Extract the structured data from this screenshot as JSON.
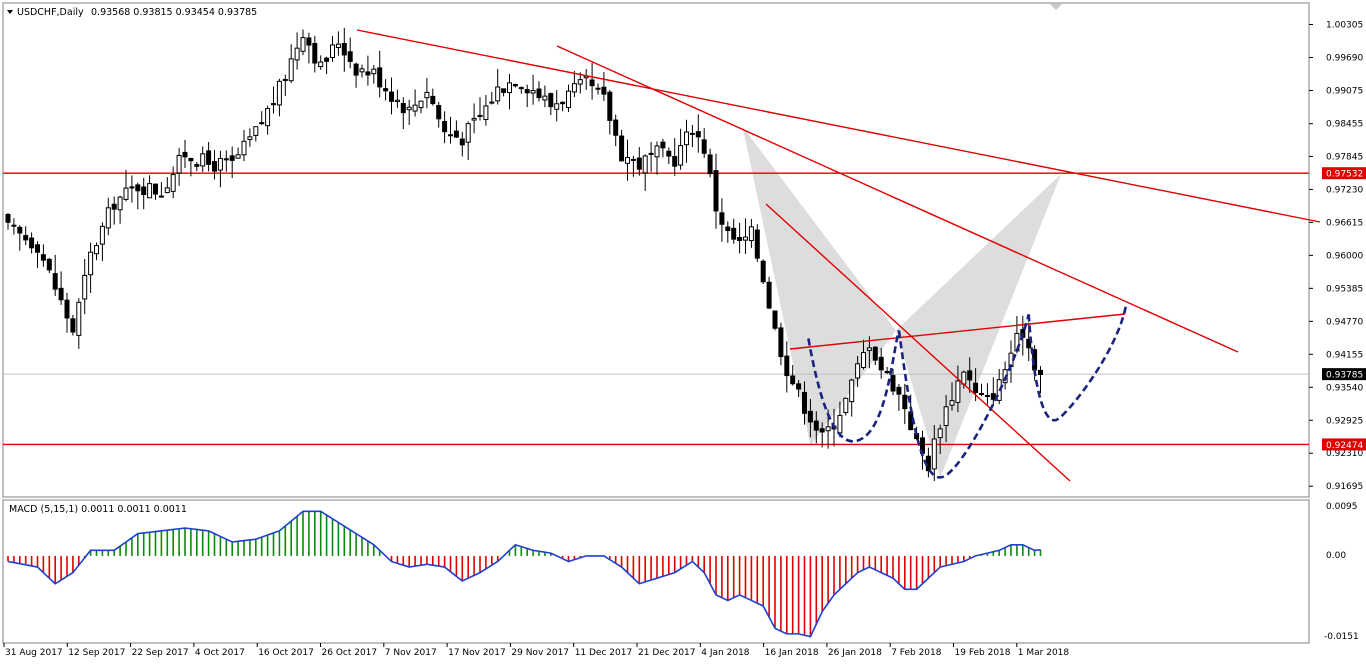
{
  "header": {
    "symbol": "USDCHF,Daily",
    "ohlc": "0.93568 0.93815 0.93454 0.93785"
  },
  "macd": {
    "label": "MACD (5,15,1) 0.0011 0.0011 0.0011",
    "scale_labels": [
      "0.0095",
      "0.00",
      "-0.0151"
    ]
  },
  "colors": {
    "bull_candle": "#ffffff",
    "bear_candle": "#000000",
    "trendline": "#e00000",
    "pattern_fill": "#d9d9d9",
    "dashed_curve": "#1a237e",
    "macd_pos": "#0a8a0a",
    "macd_neg": "#e00000",
    "macd_signal": "#1f3fd1",
    "price_tag_red": "#e00000",
    "price_tag_current": "#000000"
  },
  "chart_data": {
    "type": "candlestick",
    "symbol": "USDCHF",
    "timeframe": "Daily",
    "y_ticks": [
      "1.00305",
      "0.99690",
      "0.99075",
      "0.98455",
      "0.97845",
      "0.97230",
      "0.96615",
      "0.96000",
      "0.95385",
      "0.94770",
      "0.94155",
      "0.93540",
      "0.92925",
      "0.92310",
      "0.91695"
    ],
    "ylim": [
      0.9155,
      1.0065
    ],
    "x_ticks": [
      "31 Aug 2017",
      "12 Sep 2017",
      "22 Sep 2017",
      "4 Oct 2017",
      "16 Oct 2017",
      "26 Oct 2017",
      "7 Nov 2017",
      "17 Nov 2017",
      "29 Nov 2017",
      "11 Dec 2017",
      "21 Dec 2017",
      "4 Jan 2018",
      "16 Jan 2018",
      "26 Jan 2018",
      "7 Feb 2018",
      "19 Feb 2018",
      "1 Mar 2018"
    ],
    "price_tags": [
      {
        "value": 0.97532,
        "text": "0.97532",
        "style": "red"
      },
      {
        "value": 0.93785,
        "text": "0.93785",
        "style": "current"
      },
      {
        "value": 0.92474,
        "text": "0.92474",
        "style": "red"
      }
    ],
    "horizontal_lines": [
      0.97532,
      0.92474
    ],
    "close_path": [
      [
        0,
        0.965
      ],
      [
        5,
        0.962
      ],
      [
        8,
        0.954
      ],
      [
        11,
        0.946
      ],
      [
        14,
        0.96
      ],
      [
        18,
        0.97
      ],
      [
        22,
        0.973
      ],
      [
        26,
        0.972
      ],
      [
        30,
        0.979
      ],
      [
        34,
        0.977
      ],
      [
        38,
        0.977
      ],
      [
        42,
        0.983
      ],
      [
        46,
        0.991
      ],
      [
        50,
        1.002
      ],
      [
        53,
        0.995
      ],
      [
        56,
        1.0
      ],
      [
        59,
        0.995
      ],
      [
        62,
        0.994
      ],
      [
        65,
        0.99
      ],
      [
        68,
        0.987
      ],
      [
        71,
        0.991
      ],
      [
        74,
        0.983
      ],
      [
        77,
        0.982
      ],
      [
        80,
        0.986
      ],
      [
        83,
        0.991
      ],
      [
        86,
        0.993
      ],
      [
        89,
        0.991
      ],
      [
        92,
        0.988
      ],
      [
        95,
        0.99
      ],
      [
        98,
        0.992
      ],
      [
        101,
        0.989
      ],
      [
        104,
        0.979
      ],
      [
        107,
        0.977
      ],
      [
        110,
        0.979
      ],
      [
        113,
        0.978
      ],
      [
        116,
        0.984
      ],
      [
        118,
        0.98
      ],
      [
        120,
        0.969
      ],
      [
        122,
        0.964
      ],
      [
        124,
        0.962
      ],
      [
        126,
        0.964
      ],
      [
        128,
        0.956
      ],
      [
        130,
        0.946
      ],
      [
        132,
        0.939
      ],
      [
        134,
        0.934
      ],
      [
        136,
        0.93
      ],
      [
        138,
        0.926
      ],
      [
        140,
        0.929
      ],
      [
        142,
        0.933
      ],
      [
        144,
        0.939
      ],
      [
        146,
        0.944
      ],
      [
        148,
        0.939
      ],
      [
        150,
        0.936
      ],
      [
        152,
        0.932
      ],
      [
        154,
        0.925
      ],
      [
        156,
        0.921
      ],
      [
        158,
        0.929
      ],
      [
        160,
        0.934
      ],
      [
        162,
        0.939
      ],
      [
        164,
        0.934
      ],
      [
        166,
        0.933
      ],
      [
        168,
        0.936
      ],
      [
        170,
        0.942
      ],
      [
        172,
        0.946
      ],
      [
        174,
        0.94
      ],
      [
        175,
        0.9378
      ]
    ],
    "macd_path": [
      [
        0,
        -0.001
      ],
      [
        5,
        -0.002
      ],
      [
        8,
        -0.005
      ],
      [
        11,
        -0.003
      ],
      [
        14,
        0.001
      ],
      [
        18,
        0.001
      ],
      [
        22,
        0.004
      ],
      [
        26,
        0.0045
      ],
      [
        30,
        0.005
      ],
      [
        34,
        0.0045
      ],
      [
        38,
        0.0025
      ],
      [
        42,
        0.003
      ],
      [
        46,
        0.0045
      ],
      [
        50,
        0.008
      ],
      [
        53,
        0.008
      ],
      [
        56,
        0.006
      ],
      [
        59,
        0.004
      ],
      [
        62,
        0.002
      ],
      [
        65,
        -0.001
      ],
      [
        68,
        -0.002
      ],
      [
        71,
        -0.0015
      ],
      [
        74,
        -0.002
      ],
      [
        77,
        -0.0045
      ],
      [
        80,
        -0.003
      ],
      [
        83,
        -0.001
      ],
      [
        86,
        0.002
      ],
      [
        89,
        0.001
      ],
      [
        92,
        0.0005
      ],
      [
        95,
        -0.001
      ],
      [
        98,
        0.0
      ],
      [
        101,
        0.0
      ],
      [
        104,
        -0.002
      ],
      [
        107,
        -0.005
      ],
      [
        110,
        -0.004
      ],
      [
        113,
        -0.003
      ],
      [
        116,
        -0.001
      ],
      [
        118,
        -0.003
      ],
      [
        120,
        -0.007
      ],
      [
        122,
        -0.008
      ],
      [
        124,
        -0.007
      ],
      [
        126,
        -0.008
      ],
      [
        128,
        -0.009
      ],
      [
        130,
        -0.013
      ],
      [
        132,
        -0.014
      ],
      [
        134,
        -0.014
      ],
      [
        136,
        -0.0145
      ],
      [
        138,
        -0.01
      ],
      [
        140,
        -0.007
      ],
      [
        142,
        -0.005
      ],
      [
        144,
        -0.003
      ],
      [
        146,
        -0.002
      ],
      [
        148,
        -0.003
      ],
      [
        150,
        -0.004
      ],
      [
        152,
        -0.006
      ],
      [
        154,
        -0.006
      ],
      [
        156,
        -0.004
      ],
      [
        158,
        -0.002
      ],
      [
        160,
        -0.0015
      ],
      [
        162,
        -0.001
      ],
      [
        164,
        0.0
      ],
      [
        166,
        0.0005
      ],
      [
        168,
        0.001
      ],
      [
        170,
        0.002
      ],
      [
        172,
        0.002
      ],
      [
        174,
        0.001
      ],
      [
        175,
        0.0011
      ]
    ],
    "candle_count": 176,
    "macd_ylim": [
      -0.0151,
      0.0095
    ]
  }
}
